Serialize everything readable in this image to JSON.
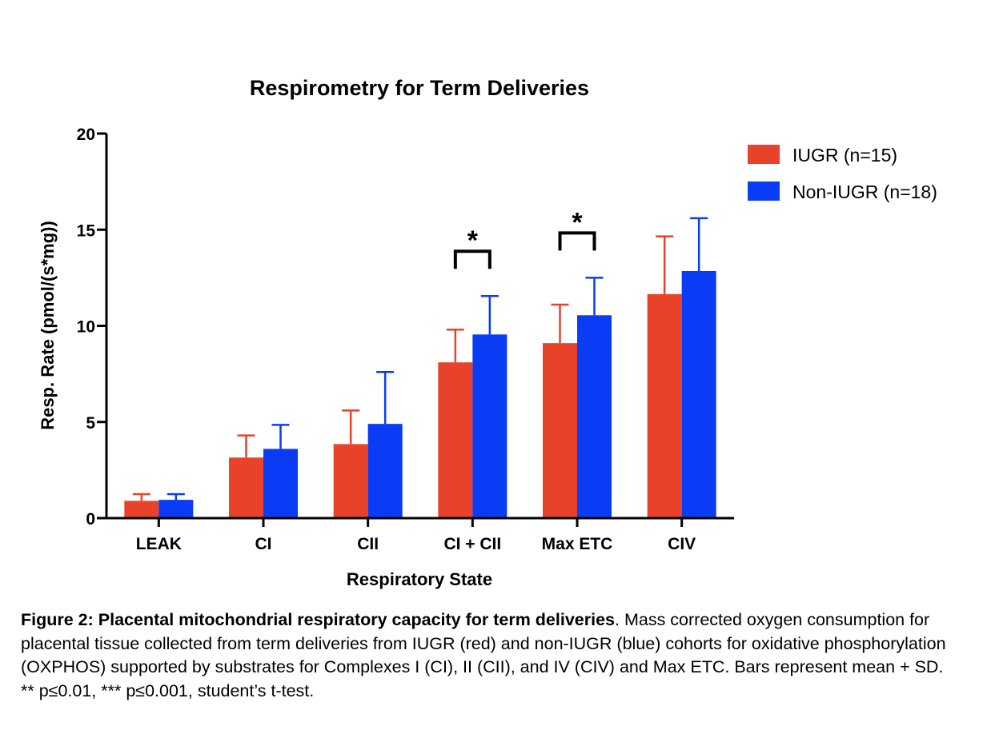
{
  "chart_data": {
    "type": "bar",
    "title": "Respirometry for Term Deliveries",
    "xlabel": "Respiratory State",
    "ylabel": "Resp. Rate (pmol/(s*mg))",
    "ylim": [
      0,
      20
    ],
    "yticks": [
      0,
      5,
      10,
      15,
      20
    ],
    "grid": false,
    "legend_position": "top-right",
    "categories": [
      "LEAK",
      "CI",
      "CII",
      "CI + CII",
      "Max ETC",
      "CIV"
    ],
    "series": [
      {
        "name": "IUGR (n=15)",
        "color": "#e8432a",
        "values": [
          0.9,
          3.15,
          3.85,
          8.1,
          9.1,
          11.65
        ],
        "sd": [
          0.35,
          1.15,
          1.75,
          1.7,
          2.0,
          3.0
        ]
      },
      {
        "name": "Non-IUGR (n=18)",
        "color": "#0a3cf5",
        "values": [
          0.95,
          3.6,
          4.9,
          9.55,
          10.55,
          12.85
        ],
        "sd": [
          0.3,
          1.25,
          2.7,
          2.0,
          1.95,
          2.75
        ]
      }
    ],
    "significance": [
      {
        "category": "CI + CII",
        "label": "*"
      },
      {
        "category": "Max ETC",
        "label": "*"
      }
    ]
  },
  "caption": {
    "bold": "Figure 2: Placental mitochondrial respiratory capacity for term deliveries",
    "text": ". Mass corrected oxygen consumption for placental tissue collected from term deliveries from IUGR (red) and non-IUGR (blue) cohorts for oxidative phosphorylation (OXPHOS) supported by substrates for Complexes I (CI), II (CII), and IV (CIV) and Max ETC. Bars represent mean + SD. ** p≤0.01, *** p≤0.001, student’s t-test."
  }
}
